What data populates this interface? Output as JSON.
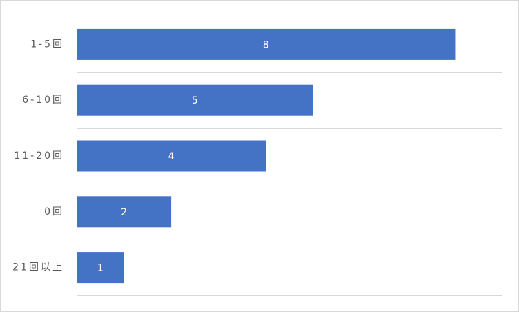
{
  "chart_data": {
    "type": "bar",
    "orientation": "horizontal",
    "categories": [
      "1-5回",
      "6-10回",
      "11-20回",
      "0回",
      "21回以上"
    ],
    "values": [
      8,
      5,
      4,
      2,
      1
    ],
    "color": "#4472c4",
    "xlim": [
      0,
      9
    ],
    "grid": true
  }
}
